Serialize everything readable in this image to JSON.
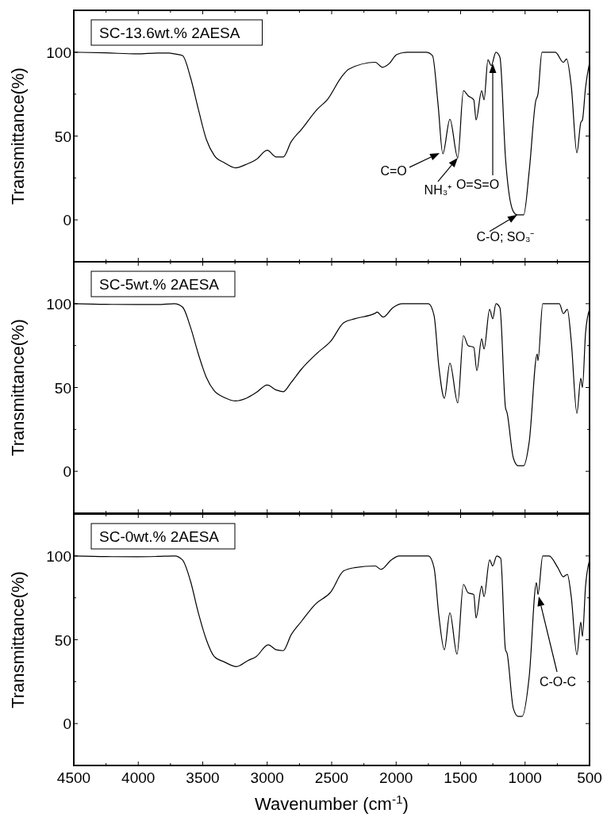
{
  "chart_data": [
    {
      "type": "line",
      "ylabel": "Transmittance(%)",
      "xlim": [
        4500,
        500
      ],
      "xticks": [
        4500,
        {
          "value": 4250,
          "label": null
        },
        4000,
        {
          "value": 3750,
          "label": null
        },
        3500,
        {
          "value": 3250,
          "label": null
        },
        3000,
        {
          "value": 2750,
          "label": null
        },
        2500,
        {
          "value": 2250,
          "label": null
        },
        2000,
        {
          "value": 1750,
          "label": null
        },
        1500,
        {
          "value": 1250,
          "label": null
        },
        1000,
        {
          "value": 750,
          "label": null
        },
        500
      ],
      "ylim": [
        -25,
        125
      ],
      "yticks": [
        {
          "value": -25,
          "label": null
        },
        0,
        {
          "value": 25,
          "label": null
        },
        50,
        {
          "value": 75,
          "label": null
        },
        100
      ],
      "tick_labels": "y",
      "legend": "top left",
      "grid": false,
      "series": [
        {
          "name": "SC-13.6wt.% 2AESA",
          "color": "#000000",
          "x": [
            4500,
            4250,
            4008,
            3850,
            3762,
            3718,
            3657,
            3595,
            3534,
            3472,
            3411,
            3331,
            3245,
            3165,
            3085,
            3000,
            2930,
            2876,
            2814,
            2734,
            2611,
            2531,
            2426,
            2365,
            2162,
            2106,
            2057,
            1995,
            1915,
            1768,
            1718,
            1675,
            1638,
            1583,
            1522,
            1478,
            1442,
            1398,
            1380,
            1337,
            1318,
            1288,
            1263,
            1226,
            1195,
            1152,
            1091,
            1060,
            1011,
            968,
            918,
            900,
            869,
            765,
            703,
            678,
            642,
            598,
            568,
            555,
            531,
            500
          ],
          "values": [
            100,
            99.6,
            99,
            99.5,
            99.5,
            99,
            98,
            85,
            66,
            48,
            38.5,
            34,
            31,
            33,
            36,
            41.5,
            37.5,
            37.5,
            46.6,
            54,
            66,
            72,
            85,
            90,
            94,
            91,
            93,
            98.6,
            100,
            100,
            98,
            69,
            39.4,
            60,
            37,
            77,
            74,
            71.6,
            59.6,
            77,
            71.6,
            95.5,
            92,
            100,
            97,
            37,
            5,
            3,
            3,
            29,
            70.7,
            75,
            100,
            100,
            94,
            96,
            80,
            40,
            58,
            59.6,
            79,
            94
          ]
        }
      ],
      "annotations": [
        {
          "text": "C=O",
          "x": 1638,
          "y": 39.4
        },
        {
          "text": "NH₃⁺",
          "x": 1522,
          "y": 37
        },
        "O=S=O",
        {
          "text": "C-O; SO₃⁻",
          "x": 1060,
          "y": 3
        }
      ]
    },
    {
      "type": "line",
      "ylabel": "Transmittance(%)",
      "xlim": [
        4500,
        500
      ],
      "xticks": [
        4500,
        {
          "value": 4250,
          "label": null
        },
        4000,
        {
          "value": 3750,
          "label": null
        },
        3500,
        {
          "value": 3250,
          "label": null
        },
        3000,
        {
          "value": 2750,
          "label": null
        },
        2500,
        {
          "value": 2250,
          "label": null
        },
        2000,
        {
          "value": 1750,
          "label": null
        },
        1500,
        {
          "value": 1250,
          "label": null
        },
        1000,
        {
          "value": 750,
          "label": null
        },
        500
      ],
      "ylim": [
        -25,
        125
      ],
      "yticks": [
        {
          "value": -25,
          "label": null
        },
        0,
        {
          "value": 25,
          "label": null
        },
        50,
        {
          "value": 75,
          "label": null
        },
        100
      ],
      "tick_labels": "y",
      "legend": "top left",
      "grid": false,
      "series": [
        {
          "name": "SC-5wt.% 2AESA",
          "color": "#000000",
          "x": [
            4500,
            4250,
            4008,
            3850,
            3720,
            3657,
            3595,
            3534,
            3472,
            3411,
            3331,
            3245,
            3165,
            3085,
            3000,
            2930,
            2876,
            2814,
            2734,
            2611,
            2506,
            2408,
            2322,
            2162,
            2149,
            2100,
            2026,
            1952,
            1749,
            1706,
            1668,
            1626,
            1583,
            1522,
            1478,
            1442,
            1398,
            1374,
            1337,
            1318,
            1275,
            1251,
            1226,
            1195,
            1152,
            1140,
            1091,
            1054,
            1011,
            968,
            906,
            900,
            863,
            734,
            703,
            672,
            642,
            598,
            568,
            555,
            531,
            500
          ],
          "values": [
            100,
            99.6,
            99.5,
            99.5,
            100,
            98,
            86,
            70,
            56,
            48,
            44,
            42,
            43.5,
            47,
            51.5,
            48.5,
            47.5,
            53,
            61,
            70.6,
            77.7,
            88.6,
            91,
            94.3,
            95,
            92,
            97.6,
            100,
            100,
            93,
            62,
            43.6,
            64.5,
            40.8,
            81,
            75,
            74,
            60,
            79,
            73,
            96.7,
            91,
            100,
            97.6,
            38,
            35,
            8,
            3.3,
            3.3,
            17.5,
            70,
            66,
            100,
            100,
            94,
            96.7,
            77.7,
            34.6,
            55.5,
            50,
            82.5,
            96.7
          ]
        }
      ]
    },
    {
      "type": "line",
      "xlabel": "Wavenumber (cm$^{-1}$)",
      "ylabel": "Transmittance(%)",
      "xlim": [
        4500,
        500
      ],
      "xticks": [
        4500,
        {
          "value": 4250,
          "label": null
        },
        4000,
        {
          "value": 3750,
          "label": null
        },
        3500,
        {
          "value": 3250,
          "label": null
        },
        3000,
        {
          "value": 2750,
          "label": null
        },
        2500,
        {
          "value": 2250,
          "label": null
        },
        2000,
        {
          "value": 1750,
          "label": null
        },
        1500,
        {
          "value": 1250,
          "label": null
        },
        1000,
        {
          "value": 750,
          "label": null
        },
        500
      ],
      "ylim": [
        -25,
        125
      ],
      "yticks": [
        {
          "value": -25,
          "label": null
        },
        0,
        {
          "value": 25,
          "label": null
        },
        50,
        {
          "value": 75,
          "label": null
        },
        100
      ],
      "legend": "top left",
      "grid": false,
      "series": [
        {
          "name": "SC-0wt.% 2AESA",
          "color": "#000000",
          "x": [
            4500,
            4250,
            4008,
            3850,
            3718,
            3657,
            3595,
            3534,
            3472,
            3411,
            3331,
            3238,
            3152,
            3085,
            2992,
            2930,
            2876,
            2814,
            2734,
            2629,
            2506,
            2408,
            2322,
            2162,
            2118,
            2038,
            1977,
            1749,
            1706,
            1668,
            1626,
            1583,
            1528,
            1478,
            1442,
            1398,
            1380,
            1337,
            1318,
            1275,
            1251,
            1220,
            1189,
            1152,
            1140,
            1091,
            1054,
            1023,
            968,
            912,
            900,
            863,
            814,
            746,
            703,
            672,
            642,
            598,
            568,
            555,
            531,
            500
          ],
          "values": [
            100,
            99.6,
            99.5,
            99.7,
            100,
            97.6,
            85,
            66,
            50,
            40,
            36.7,
            34,
            37.5,
            40,
            47,
            44,
            43.5,
            53,
            61,
            71,
            78.6,
            91,
            93,
            94,
            92,
            97.6,
            100,
            100,
            93,
            64,
            44,
            66,
            41.4,
            83,
            78,
            77,
            63,
            82,
            75.7,
            97.6,
            94,
            100,
            98.6,
            44,
            42,
            9,
            4.3,
            4.3,
            28,
            84,
            77,
            100,
            100,
            93,
            87.6,
            89,
            75.7,
            41,
            60.5,
            52,
            82,
            97.6
          ]
        }
      ],
      "annotations": [
        "C-O-C"
      ]
    }
  ]
}
